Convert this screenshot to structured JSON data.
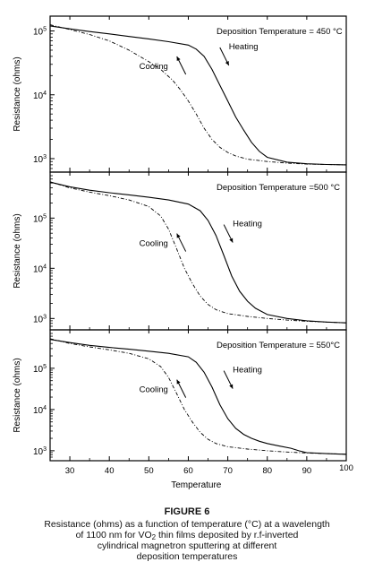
{
  "chart_data": {
    "type": "line",
    "x_label": "Temperature",
    "y_label": "Resistance (ohms)",
    "y_scale": "log",
    "x_ticks": [
      30,
      40,
      50,
      60,
      70,
      80,
      90,
      100
    ],
    "xlim": [
      25,
      100
    ],
    "panels": [
      {
        "title": "Deposition Temperature = 450 °C",
        "ylim": [
          700,
          150000
        ],
        "y_ticks": [
          {
            "value": 1000,
            "label": "10^3"
          },
          {
            "value": 10000,
            "label": "10^4"
          },
          {
            "value": 100000,
            "label": "10^5"
          }
        ],
        "annotations": [
          {
            "text": "Heating",
            "arrow": "down"
          },
          {
            "text": "Cooling",
            "arrow": "up"
          }
        ],
        "series": [
          {
            "name": "Heating",
            "style": "solid",
            "x": [
              25,
              30,
              35,
              40,
              45,
              50,
              55,
              60,
              62,
              64,
              66,
              68,
              70,
              72,
              74,
              76,
              78,
              80,
              85,
              90,
              95,
              100
            ],
            "y": [
              120000,
              108000,
              98000,
              90000,
              82000,
              75000,
              68000,
              60000,
              52000,
              40000,
              25000,
              14000,
              8000,
              4500,
              2800,
              1800,
              1300,
              1050,
              880,
              830,
              810,
              800
            ]
          },
          {
            "name": "Cooling",
            "style": "dashdot",
            "x": [
              25,
              30,
              35,
              40,
              45,
              50,
              53,
              56,
              58,
              60,
              62,
              64,
              66,
              68,
              70,
              72,
              75,
              80,
              85,
              90,
              95,
              100
            ],
            "y": [
              125000,
              105000,
              88000,
              70000,
              50000,
              33000,
              25000,
              17000,
              12000,
              8000,
              5000,
              3000,
              2000,
              1500,
              1250,
              1100,
              980,
              900,
              850,
              820,
              810,
              800
            ]
          }
        ]
      },
      {
        "title": "Deposition Temperature =500 °C",
        "ylim": [
          700,
          700000
        ],
        "y_ticks": [
          {
            "value": 1000,
            "label": "10^3"
          },
          {
            "value": 10000,
            "label": "10^4"
          },
          {
            "value": 100000,
            "label": "10^5"
          }
        ],
        "annotations": [
          {
            "text": "Heating",
            "arrow": "down"
          },
          {
            "text": "Cooling",
            "arrow": "up"
          }
        ],
        "series": [
          {
            "name": "Heating",
            "style": "solid",
            "x": [
              25,
              30,
              35,
              40,
              45,
              50,
              55,
              60,
              63,
              65,
              67,
              69,
              71,
              73,
              75,
              77,
              80,
              85,
              90,
              95,
              100
            ],
            "y": [
              520000,
              420000,
              360000,
              320000,
              290000,
              260000,
              230000,
              190000,
              140000,
              90000,
              45000,
              18000,
              7000,
              3500,
              2200,
              1600,
              1200,
              1000,
              900,
              850,
              820
            ]
          },
          {
            "name": "Cooling",
            "style": "dashdot",
            "x": [
              25,
              30,
              35,
              40,
              45,
              50,
              53,
              55,
              57,
              59,
              61,
              63,
              65,
              67,
              70,
              75,
              80,
              85,
              90,
              95,
              100
            ],
            "y": [
              530000,
              400000,
              330000,
              280000,
              230000,
              170000,
              110000,
              60000,
              25000,
              10000,
              5000,
              2800,
              1900,
              1500,
              1250,
              1100,
              1000,
              930,
              880,
              850,
              820
            ]
          }
        ]
      },
      {
        "title": "Deposition Temperature = 550°C",
        "ylim": [
          700,
          700000
        ],
        "y_ticks": [
          {
            "value": 1000,
            "label": "10^3"
          },
          {
            "value": 10000,
            "label": "10^4"
          },
          {
            "value": 100000,
            "label": "10^5"
          }
        ],
        "annotations": [
          {
            "text": "Heating",
            "arrow": "down"
          },
          {
            "text": "Cooling",
            "arrow": "up"
          }
        ],
        "series": [
          {
            "name": "Heating",
            "style": "solid",
            "x": [
              25,
              30,
              35,
              40,
              45,
              50,
              55,
              60,
              62,
              64,
              66,
              68,
              70,
              72,
              74,
              76,
              78,
              80,
              83,
              86,
              88,
              90,
              95,
              100
            ],
            "y": [
              500000,
              420000,
              360000,
              320000,
              290000,
              260000,
              230000,
              190000,
              140000,
              80000,
              35000,
              13000,
              6000,
              3500,
              2500,
              2000,
              1700,
              1500,
              1300,
              1150,
              1000,
              900,
              850,
              820
            ]
          },
          {
            "name": "Cooling",
            "style": "dashdot",
            "x": [
              25,
              30,
              35,
              40,
              45,
              50,
              53,
              55,
              57,
              59,
              61,
              63,
              65,
              67,
              70,
              75,
              80,
              85,
              90,
              95,
              100
            ],
            "y": [
              520000,
              400000,
              330000,
              280000,
              230000,
              170000,
              110000,
              60000,
              25000,
              10000,
              5000,
              2800,
              1900,
              1500,
              1250,
              1100,
              1000,
              930,
              880,
              850,
              820
            ]
          }
        ]
      }
    ]
  },
  "caption": {
    "figure_title": "FIGURE 6",
    "line1": "Resistance (ohms) as a function of temperature (°C) at a wavelength",
    "line2_pre": "of 1100 nm for VO",
    "line2_sub": "2",
    "line2_post": " thin films deposited by r.f-inverted",
    "line3": "cylindrical magnetron sputtering at different",
    "line4": "deposition temperatures"
  }
}
